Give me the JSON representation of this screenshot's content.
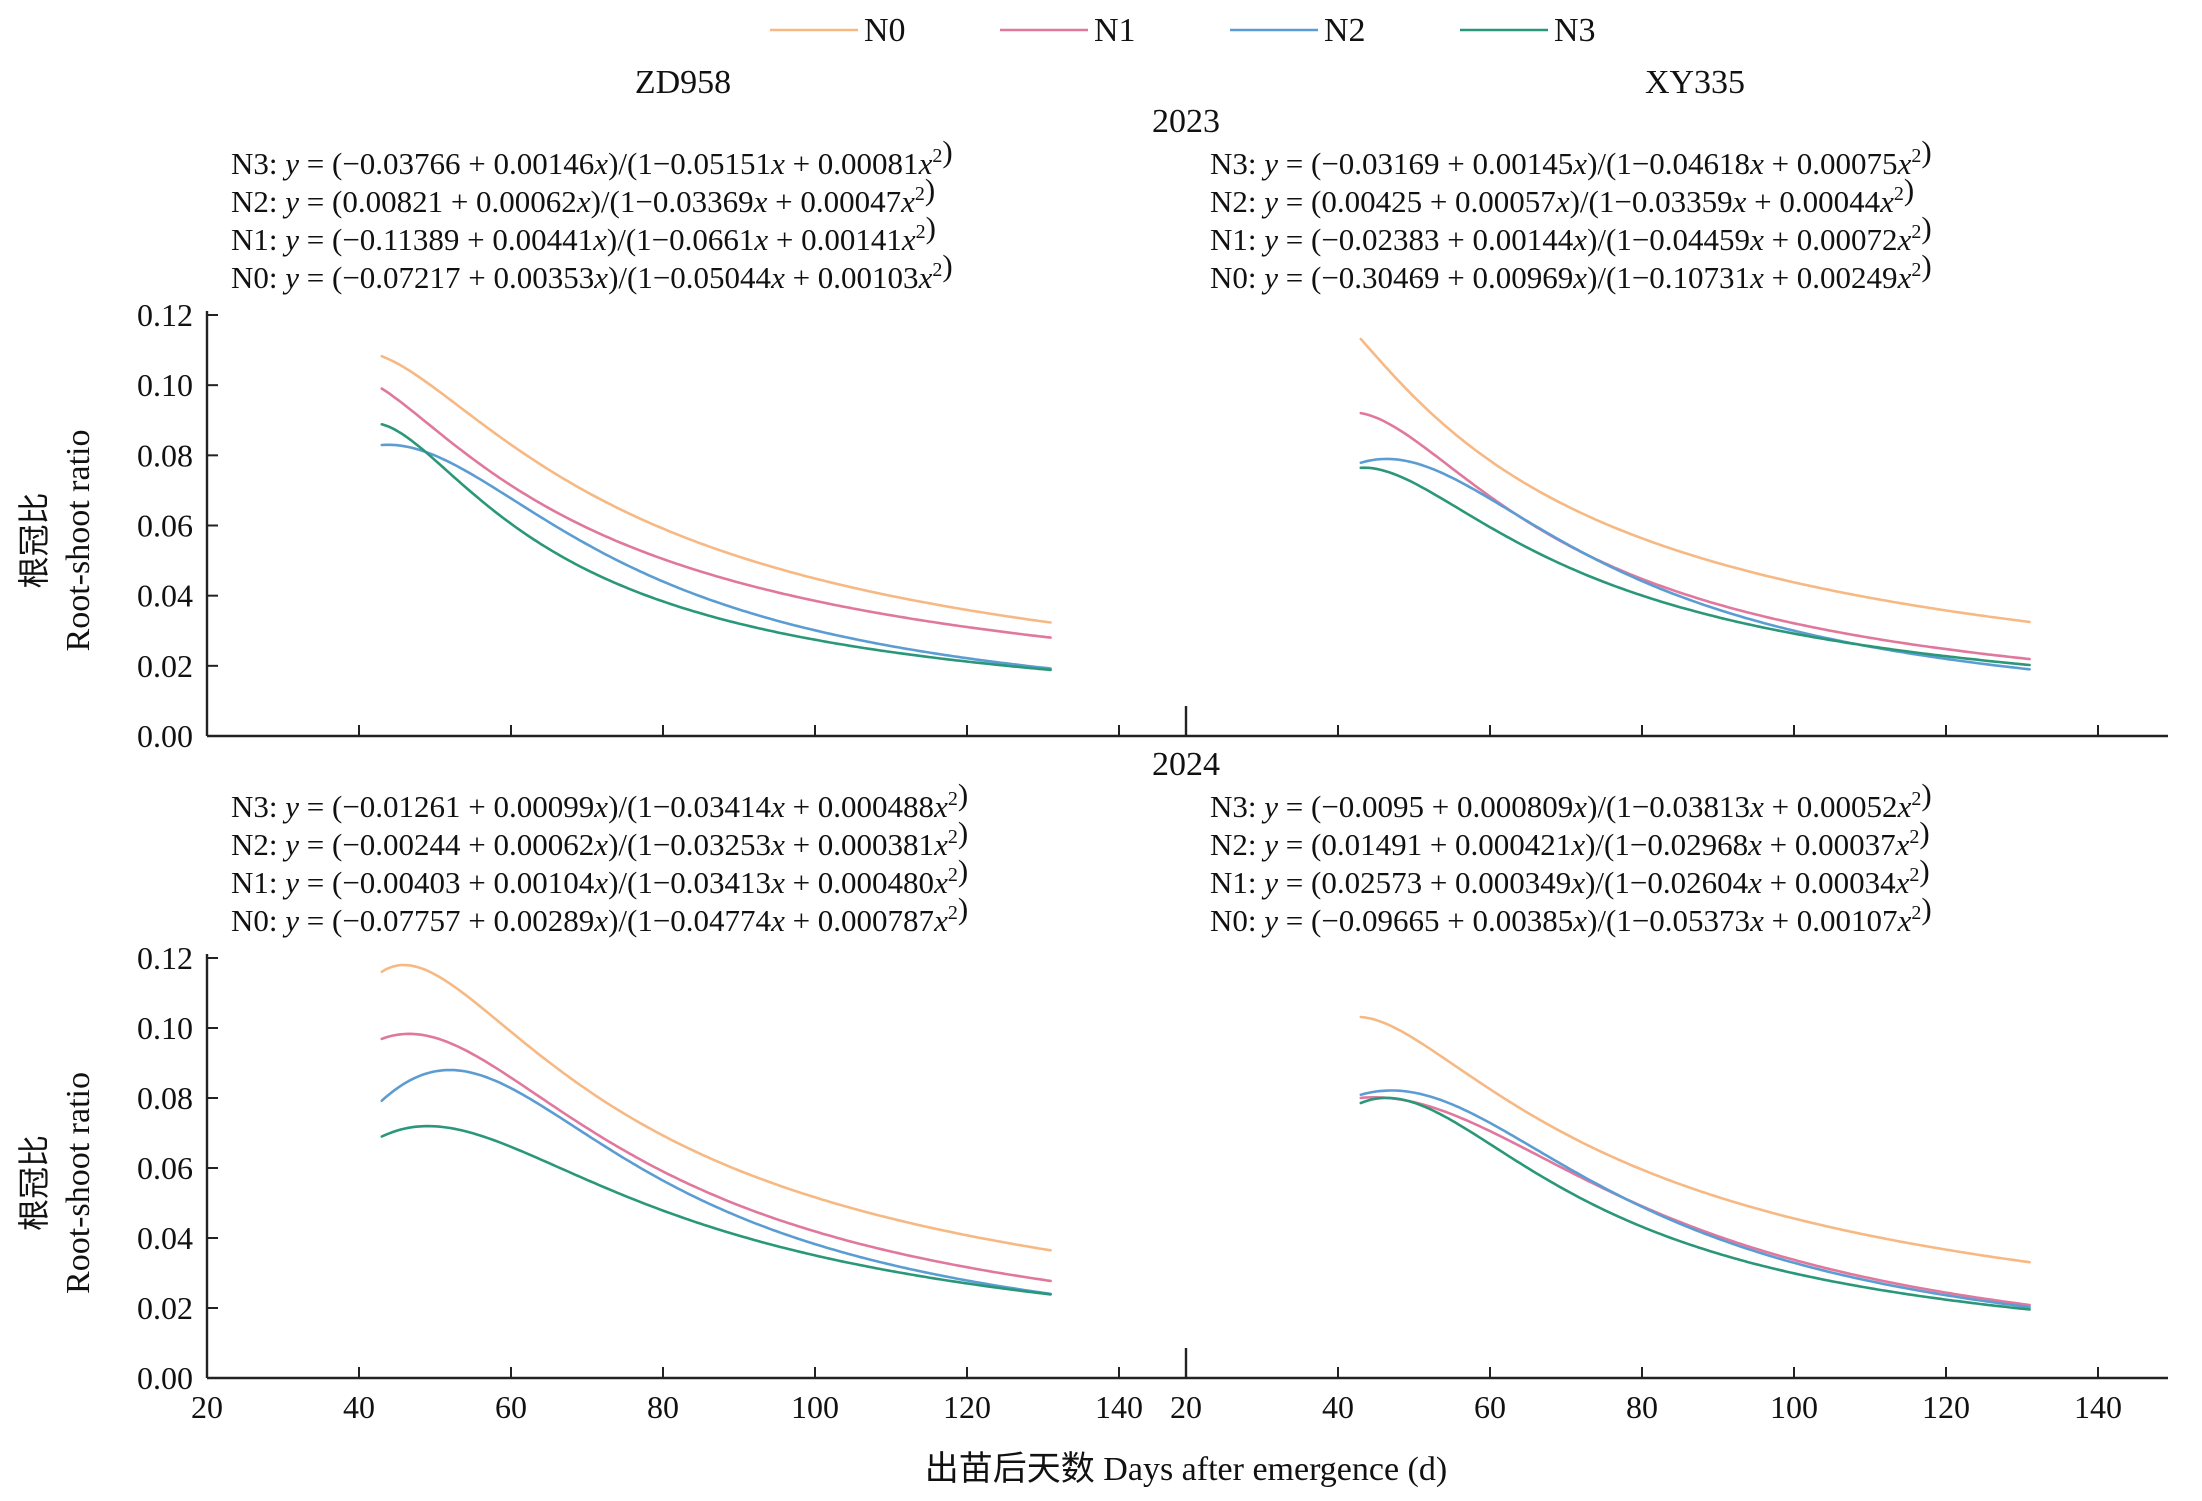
{
  "chart_data": {
    "type": "line",
    "legend": {
      "position": "top",
      "entries": [
        {
          "name": "N0",
          "color": "#F7B983"
        },
        {
          "name": "N1",
          "color": "#E0789E"
        },
        {
          "name": "N2",
          "color": "#5B9DD3"
        },
        {
          "name": "N3",
          "color": "#2A9778"
        }
      ]
    },
    "cultivars": [
      "ZD958",
      "XY335"
    ],
    "x_axis": {
      "label": "出苗后天数 Days after emergence (d)",
      "range": [
        20,
        150
      ],
      "panel_ticks": [
        [
          20,
          40,
          60,
          80,
          100,
          120,
          140
        ],
        [
          20,
          40,
          60,
          80,
          100,
          120,
          140
        ]
      ]
    },
    "y_axis": {
      "label_cn": "根冠比",
      "label_en": "Root-shoot ratio",
      "range": [
        0,
        0.12
      ],
      "ticks": [
        "0.00",
        "0.02",
        "0.04",
        "0.06",
        "0.08",
        "0.10",
        "0.12"
      ]
    },
    "grid": false,
    "x_domain": [
      43,
      131
    ],
    "rows": [
      {
        "year": "2023",
        "panels": [
          {
            "cultivar": "ZD958",
            "equations": [
              "N3: y = (−0.03766 + 0.00146x)/(1−0.05151x + 0.00081x²)",
              "N2: y = (0.00821 + 0.00062x)/(1−0.03369x + 0.00047x²)",
              "N1: y = (−0.11389 + 0.00441x)/(1−0.0661x + 0.00141x²)",
              "N0: y = (−0.07217 + 0.00353x)/(1−0.05044x + 0.00103x²)"
            ],
            "series": [
              {
                "name": "N0",
                "params": [
                  -0.07217,
                  0.00353,
                  0.05044,
                  0.00103
                ]
              },
              {
                "name": "N1",
                "params": [
                  -0.11389,
                  0.00441,
                  0.0661,
                  0.00141
                ]
              },
              {
                "name": "N2",
                "params": [
                  0.00821,
                  0.00062,
                  0.03369,
                  0.00047
                ]
              },
              {
                "name": "N3",
                "params": [
                  -0.03766,
                  0.00146,
                  0.05151,
                  0.00081
                ]
              }
            ]
          },
          {
            "cultivar": "XY335",
            "equations": [
              "N3: y = (−0.03169 + 0.00145x)/(1−0.04618x + 0.00075x²)",
              "N2: y = (0.00425 + 0.00057x)/(1−0.03359x + 0.00044x²)",
              "N1: y = (−0.02383 + 0.00144x)/(1−0.04459x + 0.00072x²)",
              "N0: y = (−0.30469 + 0.00969x)/(1−0.10731x + 0.00249x²)"
            ],
            "series": [
              {
                "name": "N0",
                "params": [
                  -0.30469,
                  0.00969,
                  0.10731,
                  0.00249
                ]
              },
              {
                "name": "N1",
                "params": [
                  -0.02383,
                  0.00144,
                  0.04459,
                  0.00072
                ]
              },
              {
                "name": "N2",
                "params": [
                  0.00425,
                  0.00057,
                  0.03359,
                  0.00044
                ]
              },
              {
                "name": "N3",
                "params": [
                  -0.03169,
                  0.00145,
                  0.04618,
                  0.00075
                ]
              }
            ]
          }
        ]
      },
      {
        "year": "2024",
        "panels": [
          {
            "cultivar": "ZD958",
            "equations": [
              "N3: y = (−0.01261 + 0.00099x)/(1−0.03414x + 0.000488x²)",
              "N2: y = (−0.00244 + 0.00062x)/(1−0.03253x + 0.000381x²)",
              "N1: y = (−0.00403 + 0.00104x)/(1−0.03413x + 0.000480x²)",
              "N0: y = (−0.07757 + 0.00289x)/(1−0.04774x + 0.000787x²)"
            ],
            "series": [
              {
                "name": "N0",
                "params": [
                  -0.07757,
                  0.00289,
                  0.04774,
                  0.000787
                ]
              },
              {
                "name": "N1",
                "params": [
                  -0.00403,
                  0.00104,
                  0.03413,
                  0.00048
                ]
              },
              {
                "name": "N2",
                "params": [
                  -0.00244,
                  0.00062,
                  0.03253,
                  0.000381
                ]
              },
              {
                "name": "N3",
                "params": [
                  -0.01261,
                  0.00099,
                  0.03414,
                  0.000488
                ]
              }
            ]
          },
          {
            "cultivar": "XY335",
            "equations": [
              "N3: y = (−0.0095 + 0.000809x)/(1−0.03813x + 0.00052x²)",
              "N2: y = (0.01491 + 0.000421x)/(1−0.02968x + 0.00037x²)",
              "N1: y = (0.02573 + 0.000349x)/(1−0.02604x + 0.00034x²)",
              "N0: y = (−0.09665 + 0.00385x)/(1−0.05373x + 0.00107x²)"
            ],
            "series": [
              {
                "name": "N0",
                "params": [
                  -0.09665,
                  0.00385,
                  0.05373,
                  0.00107
                ]
              },
              {
                "name": "N1",
                "params": [
                  0.02573,
                  0.000349,
                  0.02604,
                  0.00034
                ]
              },
              {
                "name": "N2",
                "params": [
                  0.01491,
                  0.000421,
                  0.02968,
                  0.00037
                ]
              },
              {
                "name": "N3",
                "params": [
                  -0.0095,
                  0.000809,
                  0.03813,
                  0.00052
                ]
              }
            ]
          }
        ]
      }
    ]
  }
}
